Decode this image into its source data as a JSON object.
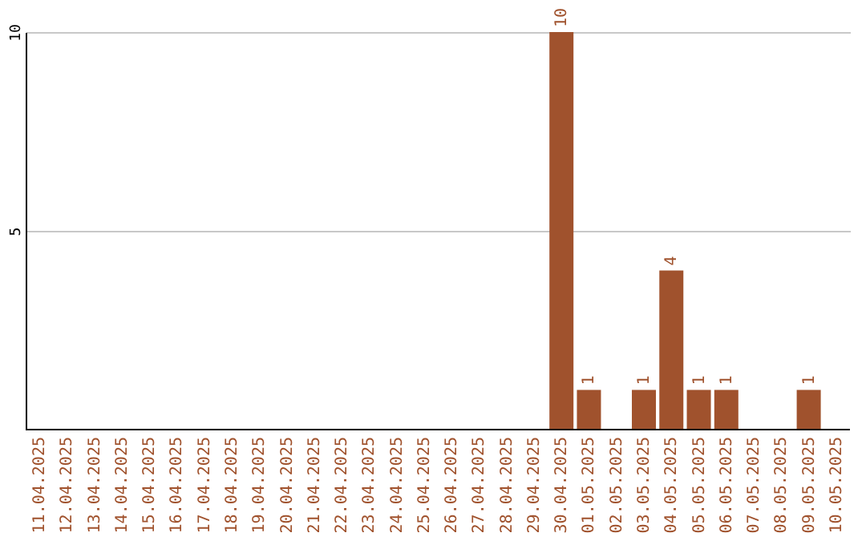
{
  "chart_data": {
    "type": "bar",
    "categories": [
      "11.04.2025",
      "12.04.2025",
      "13.04.2025",
      "14.04.2025",
      "15.04.2025",
      "16.04.2025",
      "17.04.2025",
      "18.04.2025",
      "19.04.2025",
      "20.04.2025",
      "21.04.2025",
      "22.04.2025",
      "23.04.2025",
      "24.04.2025",
      "25.04.2025",
      "26.04.2025",
      "27.04.2025",
      "28.04.2025",
      "29.04.2025",
      "30.04.2025",
      "01.05.2025",
      "02.05.2025",
      "03.05.2025",
      "04.05.2025",
      "05.05.2025",
      "06.05.2025",
      "07.05.2025",
      "08.05.2025",
      "09.05.2025",
      "10.05.2025"
    ],
    "values": [
      0,
      0,
      0,
      0,
      0,
      0,
      0,
      0,
      0,
      0,
      0,
      0,
      0,
      0,
      0,
      0,
      0,
      0,
      0,
      10,
      1,
      0,
      1,
      4,
      1,
      1,
      0,
      0,
      1,
      0
    ],
    "value_labels": [
      null,
      null,
      null,
      null,
      null,
      null,
      null,
      null,
      null,
      null,
      null,
      null,
      null,
      null,
      null,
      null,
      null,
      null,
      null,
      "10",
      "1",
      null,
      "1",
      "4",
      "1",
      "1",
      null,
      null,
      "1",
      null
    ],
    "color": "#a0522d",
    "ylim": [
      0,
      10
    ],
    "yticks": [
      5,
      10
    ],
    "grid": "y"
  }
}
